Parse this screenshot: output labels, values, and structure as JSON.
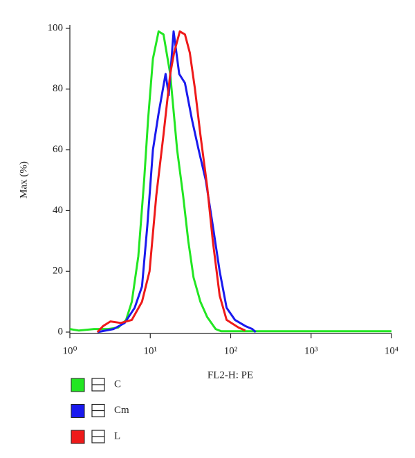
{
  "chart_data": {
    "type": "line",
    "xlabel": "FL2-H: PE",
    "ylabel": "Max (%)",
    "xscale": "log",
    "xlim": [
      1,
      10000
    ],
    "ylim": [
      0,
      100
    ],
    "xticks": [
      {
        "value": 1,
        "label": "10⁰"
      },
      {
        "value": 10,
        "label": "10¹"
      },
      {
        "value": 100,
        "label": "10²"
      },
      {
        "value": 1000,
        "label": "10³"
      },
      {
        "value": 10000,
        "label": "10⁴"
      }
    ],
    "yticks": [
      0,
      20,
      40,
      60,
      80,
      100
    ],
    "legend": "bottom-left",
    "series": [
      {
        "name": "C",
        "color": "#22e622",
        "x": [
          1,
          1.3,
          2,
          3,
          4,
          5,
          5.9,
          7.1,
          8.4,
          9.4,
          10.8,
          12.7,
          14.6,
          17.7,
          21.6,
          25.6,
          29.7,
          34.5,
          42,
          51,
          65,
          76,
          10000
        ],
        "values": [
          1,
          0.5,
          1,
          1,
          1.5,
          4,
          10,
          25,
          50,
          70,
          90,
          99,
          98,
          85,
          60,
          45,
          30,
          18,
          10,
          5,
          1,
          0.3,
          0.3
        ]
      },
      {
        "name": "Cm",
        "color": "#1a1aee",
        "x": [
          2.2,
          3.5,
          4.8,
          6.4,
          7.9,
          9.2,
          10.8,
          12.7,
          15.5,
          17,
          19.5,
          22.9,
          27,
          33,
          40,
          49,
          60,
          73,
          89,
          113,
          152,
          186,
          205
        ],
        "values": [
          0,
          1,
          3,
          8,
          15,
          35,
          60,
          72,
          85,
          78,
          99,
          85,
          82,
          70,
          60,
          50,
          35,
          20,
          8,
          4,
          2,
          1,
          0
        ]
      },
      {
        "name": "L",
        "color": "#ee1a1a",
        "x": [
          2.2,
          2.6,
          3.2,
          4.3,
          5.9,
          7.9,
          9.8,
          11.9,
          14.6,
          17.7,
          19.8,
          23.3,
          27,
          31,
          36,
          42,
          51,
          60,
          73,
          89,
          125,
          152
        ],
        "values": [
          0,
          2,
          3.5,
          3,
          4,
          10,
          20,
          45,
          65,
          85,
          92,
          99,
          98,
          92,
          80,
          65,
          48,
          30,
          12,
          4,
          1.5,
          0.5
        ]
      }
    ]
  }
}
